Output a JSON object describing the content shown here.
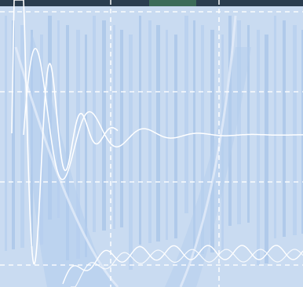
{
  "palette": {
    "background": "#c9dbf1",
    "band_light": "#dce8f7",
    "band_dark": "#9dbde6",
    "grid_line": "#ffffff",
    "trace": "#ffffff",
    "top_strip": "#2a3d4f"
  },
  "scene": {
    "description_free": true,
    "grid_style": "dashed",
    "traces": [
      "damped-oscillation-trace",
      "rising-oscillation-trace",
      "spike-trace"
    ]
  }
}
